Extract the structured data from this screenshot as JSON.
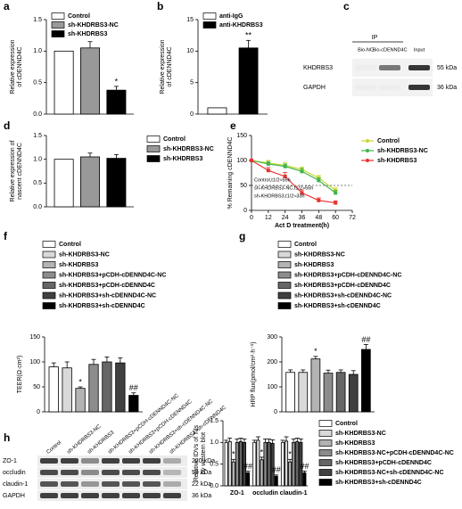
{
  "chart_data": [
    {
      "type": "bar",
      "label": "a",
      "ylabel": [
        "Relative expression",
        "of cDENND4C"
      ],
      "categories": [
        null
      ],
      "ylim": [
        0,
        1.5
      ],
      "yticks": [
        {
          "value": 0,
          "label": "0.0"
        },
        {
          "value": 0.5,
          "label": "0.5"
        },
        {
          "value": 1,
          "label": "1.0"
        },
        {
          "value": 1.5,
          "label": "1.5"
        }
      ],
      "series": [
        {
          "name": "Control",
          "color": "#ffffff",
          "values": [
            1.0
          ],
          "errors": [
            0
          ]
        },
        {
          "name": "sh-KHDRBS3-NC",
          "color": "#999999",
          "values": [
            1.05
          ],
          "errors": [
            0.1
          ]
        },
        {
          "name": "sh-KHDRBS3",
          "color": "#000000",
          "values": [
            0.38
          ],
          "errors": [
            0.06
          ],
          "significance": [
            "*"
          ]
        }
      ]
    },
    {
      "type": "bar",
      "label": "b",
      "ylabel": [
        "Relative expression",
        "of cDENND4C"
      ],
      "categories": [
        null
      ],
      "ylim": [
        0,
        15
      ],
      "yticks": [
        0,
        5,
        10,
        15
      ],
      "series": [
        {
          "name": "anti-IgG",
          "color": "#ffffff",
          "values": [
            1.0
          ],
          "errors": [
            0
          ]
        },
        {
          "name": "anti-KHDRBS3",
          "color": "#000000",
          "values": [
            10.5
          ],
          "errors": [
            1.2
          ],
          "significance": [
            "**"
          ]
        }
      ]
    },
    {
      "type": "bar",
      "label": "d",
      "ylabel": [
        "Relative expression of",
        "nascent cDENND4C"
      ],
      "categories": [
        null
      ],
      "ylim": [
        0,
        1.5
      ],
      "yticks": [
        {
          "value": 0,
          "label": "0.0"
        },
        {
          "value": 0.5,
          "label": "0.5"
        },
        {
          "value": 1,
          "label": "1.0"
        },
        {
          "value": 1.5,
          "label": "1.5"
        }
      ],
      "series": [
        {
          "name": "Control",
          "color": "#ffffff",
          "values": [
            1.0
          ],
          "errors": [
            0
          ]
        },
        {
          "name": "sh-KHDRBS3-NC",
          "color": "#999999",
          "values": [
            1.05
          ],
          "errors": [
            0.08
          ]
        },
        {
          "name": "sh-KHDRBS3",
          "color": "#000000",
          "values": [
            1.02
          ],
          "errors": [
            0.08
          ]
        }
      ]
    },
    {
      "type": "line",
      "label": "e",
      "ylabel": [
        "% Remaining cDENND4C"
      ],
      "xlabel": "Act D treatment(h)",
      "x": [
        0,
        12,
        24,
        36,
        48,
        60
      ],
      "xlim": [
        0,
        72
      ],
      "xticks": [
        0,
        12,
        24,
        36,
        48,
        60,
        72
      ],
      "ylim": [
        0,
        150
      ],
      "yticks": [
        0,
        50,
        100,
        150
      ],
      "hline": 50,
      "annotations": [
        "Control,t1/2≈55h",
        "sh-KHDRBS3-NC,t1/2≈55h",
        "sh-KHDRBS3,t1/2≈33h"
      ],
      "series": [
        {
          "name": "Control",
          "color": "#c8d62b",
          "values": [
            100,
            95,
            90,
            82,
            65,
            40
          ],
          "errors": [
            0,
            5,
            6,
            5,
            5,
            5
          ]
        },
        {
          "name": "sh-KHDRBS3-NC",
          "color": "#3cb44b",
          "values": [
            100,
            93,
            88,
            78,
            60,
            35
          ],
          "errors": [
            0,
            5,
            5,
            6,
            5,
            5
          ]
        },
        {
          "name": "sh-KHDRBS3",
          "color": "#e8322e",
          "values": [
            100,
            80,
            68,
            35,
            20,
            15
          ],
          "errors": [
            0,
            6,
            8,
            6,
            5,
            4
          ]
        }
      ]
    },
    {
      "type": "bar",
      "label": "f",
      "ylabel": [
        "TEER(Ω·cm²)"
      ],
      "categories": [
        null
      ],
      "ylim": [
        0,
        150
      ],
      "yticks": [
        0,
        50,
        100,
        150
      ],
      "series": [
        {
          "name": "Control",
          "color": "#ffffff",
          "values": [
            90
          ],
          "errors": [
            8
          ]
        },
        {
          "name": "sh-KHDRBS3-NC",
          "color": "#d9d9d9",
          "values": [
            88
          ],
          "errors": [
            12
          ]
        },
        {
          "name": "sh-KHDRBS3",
          "color": "#b3b3b3",
          "values": [
            47
          ],
          "errors": [
            3
          ],
          "significance": [
            "*"
          ]
        },
        {
          "name": "sh-KHDRBS3+pCDH-cDENND4C-NC",
          "color": "#8c8c8c",
          "values": [
            95
          ],
          "errors": [
            10
          ]
        },
        {
          "name": "sh-KHDRBS3+pCDH-cDENND4C",
          "color": "#666666",
          "values": [
            100
          ],
          "errors": [
            10
          ]
        },
        {
          "name": "sh-KHDRBS3+sh-cDENND4C-NC",
          "color": "#404040",
          "values": [
            98
          ],
          "errors": [
            10
          ]
        },
        {
          "name": "sh-KHDRBS3+sh-cDENND4C",
          "color": "#000000",
          "values": [
            33
          ],
          "errors": [
            5
          ],
          "significance": [
            "##"
          ]
        }
      ]
    },
    {
      "type": "bar",
      "label": "g",
      "ylabel": [
        "HRP flux(pmol/cm²·h⁻¹)"
      ],
      "categories": [
        null
      ],
      "ylim": [
        0,
        300
      ],
      "yticks": [
        0,
        100,
        200,
        300
      ],
      "series": [
        {
          "name": "Control",
          "color": "#ffffff",
          "values": [
            158
          ],
          "errors": [
            10
          ]
        },
        {
          "name": "sh-KHDRBS3-NC",
          "color": "#d9d9d9",
          "values": [
            158
          ],
          "errors": [
            10
          ]
        },
        {
          "name": "sh-KHDRBS3",
          "color": "#b3b3b3",
          "values": [
            212
          ],
          "errors": [
            10
          ],
          "significance": [
            "*"
          ]
        },
        {
          "name": "sh-KHDRBS3+pCDH-cDENND4C-NC",
          "color": "#8c8c8c",
          "values": [
            155
          ],
          "errors": [
            12
          ]
        },
        {
          "name": "sh-KHDRBS3+pCDH-cDENND4C",
          "color": "#666666",
          "values": [
            158
          ],
          "errors": [
            10
          ]
        },
        {
          "name": "sh-KHDRBS3+sh-cDENND4C-NC",
          "color": "#404040",
          "values": [
            150
          ],
          "errors": [
            15
          ]
        },
        {
          "name": "sh-KHDRBS3+sh-cDENND4C",
          "color": "#000000",
          "values": [
            250
          ],
          "errors": [
            20
          ],
          "significance": [
            "##"
          ]
        }
      ]
    },
    {
      "type": "bar",
      "label": "h",
      "ylabel": [
        "Relative IDVs of TJs",
        "by western blot"
      ],
      "categories": [
        "ZO-1",
        "occludin",
        "claudin-1"
      ],
      "ylim": [
        0,
        1.5
      ],
      "yticks": [
        {
          "value": 0,
          "label": "0.0"
        },
        {
          "value": 0.5,
          "label": "0.5"
        },
        {
          "value": 1,
          "label": "1.0"
        },
        {
          "value": 1.5,
          "label": "1.5"
        }
      ],
      "series": [
        {
          "name": "Control",
          "color": "#ffffff",
          "values": [
            1.0,
            1.0,
            1.0
          ],
          "errors": [
            0.05,
            0.05,
            0.05
          ]
        },
        {
          "name": "sh-KHDRBS3-NC",
          "color": "#d9d9d9",
          "values": [
            1.02,
            1.05,
            1.03
          ],
          "errors": [
            0.08,
            0.08,
            0.1
          ]
        },
        {
          "name": "sh-KHDRBS3",
          "color": "#b3b3b3",
          "values": [
            0.55,
            0.6,
            0.55
          ],
          "errors": [
            0.06,
            0.06,
            0.06
          ],
          "significance": [
            "*",
            "*",
            "*"
          ]
        },
        {
          "name": "sh-KHDRBS3-NC+pCDH-cDENND4C-NC",
          "color": "#8c8c8c",
          "values": [
            1.0,
            1.0,
            1.0
          ],
          "errors": [
            0.08,
            0.08,
            0.08
          ]
        },
        {
          "name": "sh-KHDRBS3+pCDH-cDENND4C",
          "color": "#666666",
          "values": [
            1.02,
            1.0,
            1.02
          ],
          "errors": [
            0.08,
            0.08,
            0.08
          ]
        },
        {
          "name": "sh-KHDRBS3-NC+sh-cDENND4C-NC",
          "color": "#404040",
          "values": [
            1.0,
            0.98,
            1.0
          ],
          "errors": [
            0.08,
            0.08,
            0.08
          ]
        },
        {
          "name": "sh-KHDRBS3+sh-cDENND4C",
          "color": "#000000",
          "values": [
            0.3,
            0.22,
            0.3
          ],
          "errors": [
            0.04,
            0.03,
            0.04
          ],
          "significance": [
            "##",
            "##",
            "##"
          ]
        }
      ]
    }
  ],
  "blots": [
    {
      "label": "c",
      "header": "IP",
      "lanes": [
        "Bio-NC",
        "Bio-cDENND4C",
        "Input"
      ],
      "rows": [
        {
          "name": "KHDRBS3",
          "size": "55 kDa"
        },
        {
          "name": "GAPDH",
          "size": "36 kDa"
        }
      ]
    },
    {
      "lanes": [
        "Control",
        "sh-KHDRBS3-NC",
        "sh-KHDRBS3",
        "sh-KHDRBS3+pCDH-cDENND4C-NC",
        "sh-KHDRBS3+pCDH-cDENND4C",
        "sh-KHDRBS3+sh-cDENND4C-NC",
        "sh-KHDRBS3+sh-cDENND4C"
      ],
      "rows": [
        {
          "name": "ZO-1",
          "size": "220 kDa"
        },
        {
          "name": "occludin",
          "size": "59 kDa"
        },
        {
          "name": "claudin-1",
          "size": "22 kDa"
        },
        {
          "name": "GAPDH",
          "size": "36 kDa"
        }
      ]
    }
  ]
}
